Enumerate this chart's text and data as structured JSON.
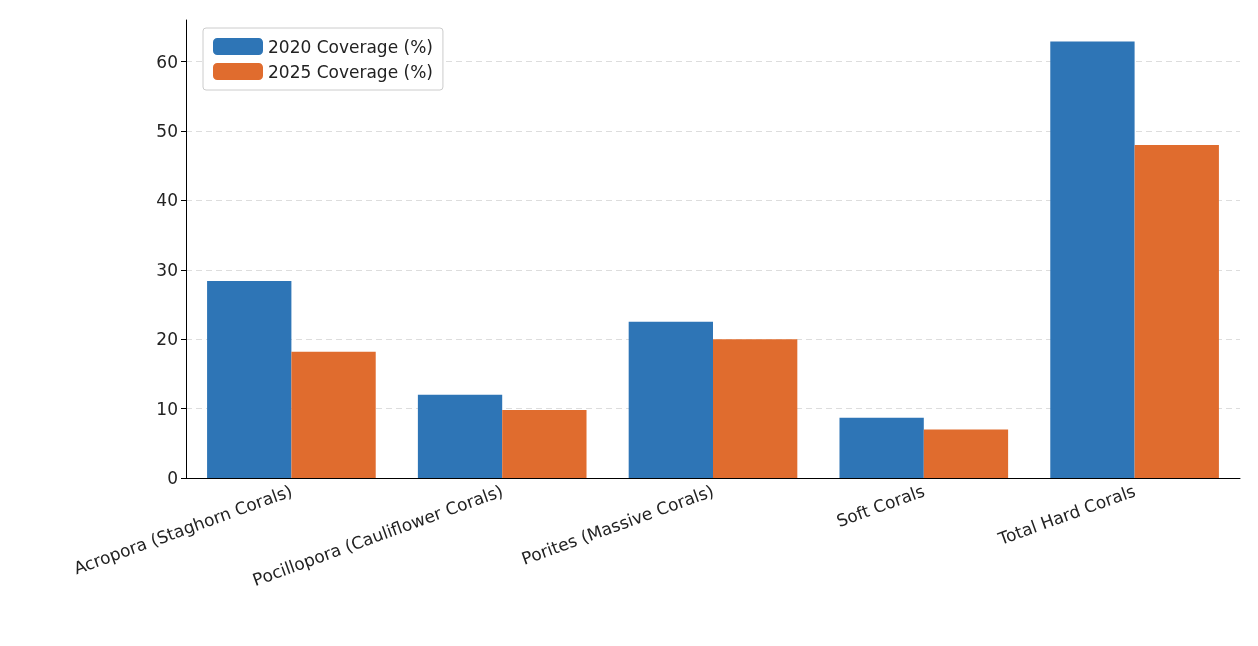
{
  "chart_data": {
    "type": "bar",
    "categories": [
      "Acropora (Staghorn Corals)",
      "Pocillopora (Cauliflower Corals)",
      "Porites (Massive Corals)",
      "Soft Corals",
      "Total Hard Corals"
    ],
    "series": [
      {
        "name": "2020 Coverage (%)",
        "color": "#2e75b6",
        "values": [
          28.4,
          12.0,
          22.5,
          8.7,
          62.9
        ]
      },
      {
        "name": "2025 Coverage (%)",
        "color": "#e06c2e",
        "values": [
          18.2,
          9.8,
          20.0,
          7.0,
          48.0
        ]
      }
    ],
    "ylim": [
      0,
      66
    ],
    "yticks": [
      0,
      10,
      20,
      30,
      40,
      50,
      60
    ],
    "grid": "y",
    "legend": "top left"
  }
}
